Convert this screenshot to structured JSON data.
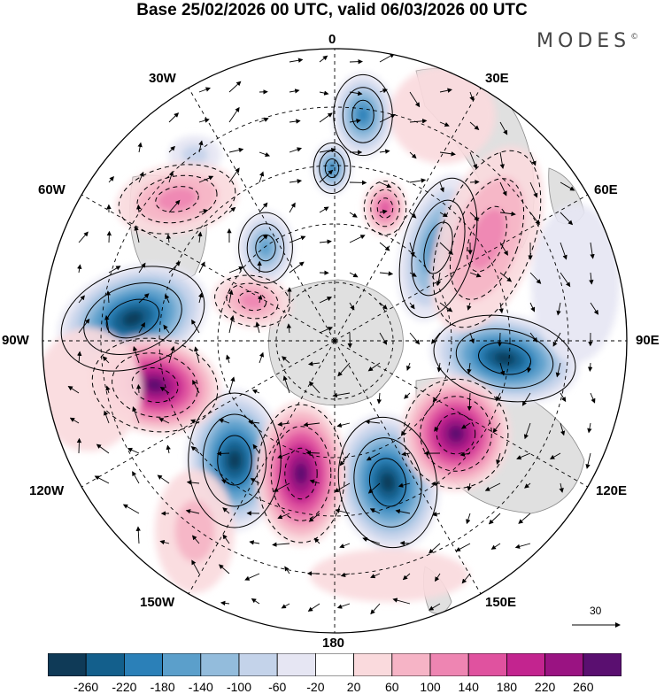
{
  "title": "Base 25/02/2026 00 UTC, valid 06/03/2026 00 UTC",
  "brand": "MODES",
  "brand_mark": "©",
  "longitude_labels": {
    "lon_0": "0",
    "lon_30e": "30E",
    "lon_60e": "60E",
    "lon_90e": "90E",
    "lon_120e": "120E",
    "lon_150e": "150E",
    "lon_180": "180",
    "lon_150w": "150W",
    "lon_120w": "120W",
    "lon_90w": "90W",
    "lon_60w": "60W",
    "lon_30w": "30W"
  },
  "vector_reference": "30",
  "colorbar": {
    "ticks": [
      "-260",
      "-220",
      "-180",
      "-140",
      "-100",
      "-60",
      "-20",
      "20",
      "60",
      "100",
      "140",
      "180",
      "220",
      "260"
    ],
    "colors": [
      "#0f3a57",
      "#135f8c",
      "#2b80b8",
      "#5b9fcb",
      "#93bcdc",
      "#c4d3ea",
      "#e6e6f3",
      "#ffffff",
      "#fadadd",
      "#f6b4c6",
      "#ee85b2",
      "#e0529f",
      "#c3248f",
      "#9a1382",
      "#5a0f70"
    ]
  }
}
